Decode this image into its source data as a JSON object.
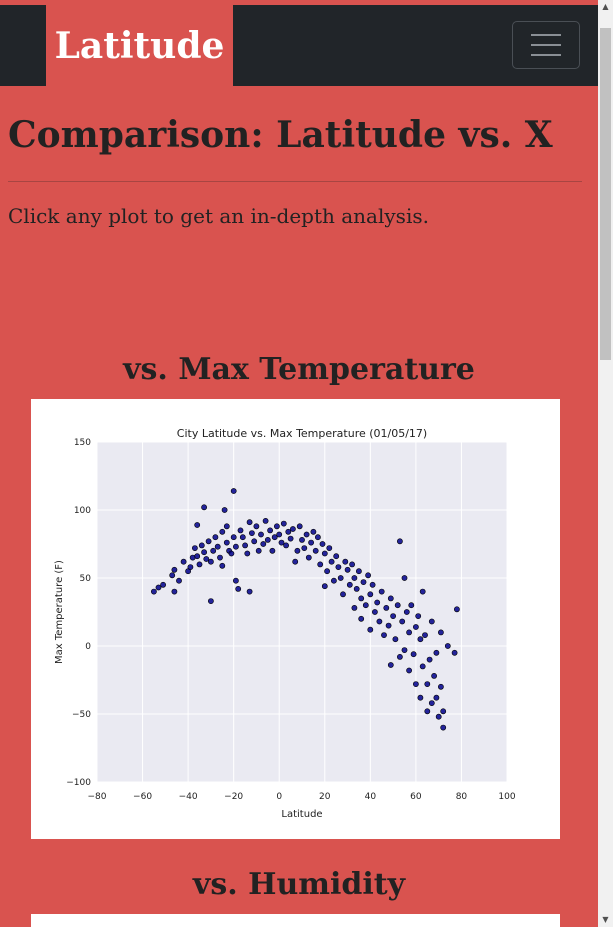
{
  "navbar": {
    "brand": "Latitude",
    "toggler_icon": "hamburger-icon"
  },
  "main": {
    "title": "Comparison: Latitude vs. X",
    "intro": "Click any plot to get an in-depth analysis."
  },
  "sections": [
    {
      "heading": "vs. Max Temperature"
    },
    {
      "heading": "vs. Humidity"
    }
  ],
  "colors": {
    "page_bg": "#d9534f",
    "navbar_bg": "#212529",
    "plot_bg": "#eaeaf2",
    "point_fill": "#00008b"
  },
  "chart_data": {
    "type": "scatter",
    "title": "City Latitude vs. Max Temperature (01/05/17)",
    "xlabel": "Latitude",
    "ylabel": "Max Temperature (F)",
    "xlim": [
      -80,
      100
    ],
    "ylim": [
      -100,
      150
    ],
    "xticks": [
      "−80",
      "−60",
      "−40",
      "−20",
      "0",
      "20",
      "40",
      "60",
      "80",
      "100"
    ],
    "yticks": [
      "150",
      "100",
      "50",
      "0",
      "−50",
      "−100"
    ],
    "grid": true,
    "series": [
      {
        "points": [
          [
            -55,
            40
          ],
          [
            -53,
            43
          ],
          [
            -51,
            45
          ],
          [
            -47,
            52
          ],
          [
            -46,
            56
          ],
          [
            -46,
            40
          ],
          [
            -44,
            48
          ],
          [
            -42,
            62
          ],
          [
            -40,
            55
          ],
          [
            -39,
            58
          ],
          [
            -38,
            65
          ],
          [
            -37,
            72
          ],
          [
            -36,
            89
          ],
          [
            -36,
            66
          ],
          [
            -35,
            60
          ],
          [
            -34,
            74
          ],
          [
            -33,
            102
          ],
          [
            -33,
            69
          ],
          [
            -32,
            64
          ],
          [
            -31,
            77
          ],
          [
            -30,
            33
          ],
          [
            -30,
            62
          ],
          [
            -29,
            70
          ],
          [
            -28,
            80
          ],
          [
            -27,
            73
          ],
          [
            -26,
            65
          ],
          [
            -25,
            84
          ],
          [
            -25,
            59
          ],
          [
            -24,
            100
          ],
          [
            -23,
            88
          ],
          [
            -23,
            76
          ],
          [
            -22,
            70
          ],
          [
            -21,
            68
          ],
          [
            -20,
            114
          ],
          [
            -20,
            80
          ],
          [
            -19,
            48
          ],
          [
            -19,
            73
          ],
          [
            -18,
            42
          ],
          [
            -17,
            85
          ],
          [
            -16,
            80
          ],
          [
            -15,
            74
          ],
          [
            -14,
            68
          ],
          [
            -13,
            91
          ],
          [
            -13,
            40
          ],
          [
            -12,
            83
          ],
          [
            -11,
            77
          ],
          [
            -10,
            88
          ],
          [
            -9,
            70
          ],
          [
            -8,
            82
          ],
          [
            -7,
            75
          ],
          [
            -6,
            92
          ],
          [
            -5,
            78
          ],
          [
            -4,
            85
          ],
          [
            -3,
            70
          ],
          [
            -2,
            80
          ],
          [
            -1,
            88
          ],
          [
            0,
            82
          ],
          [
            1,
            76
          ],
          [
            2,
            90
          ],
          [
            3,
            74
          ],
          [
            4,
            84
          ],
          [
            5,
            79
          ],
          [
            6,
            86
          ],
          [
            7,
            62
          ],
          [
            8,
            70
          ],
          [
            9,
            88
          ],
          [
            10,
            78
          ],
          [
            11,
            72
          ],
          [
            12,
            82
          ],
          [
            13,
            65
          ],
          [
            14,
            76
          ],
          [
            15,
            84
          ],
          [
            16,
            70
          ],
          [
            17,
            80
          ],
          [
            18,
            60
          ],
          [
            19,
            75
          ],
          [
            20,
            44
          ],
          [
            20,
            68
          ],
          [
            21,
            55
          ],
          [
            22,
            72
          ],
          [
            23,
            62
          ],
          [
            24,
            48
          ],
          [
            25,
            66
          ],
          [
            26,
            58
          ],
          [
            27,
            50
          ],
          [
            28,
            38
          ],
          [
            29,
            62
          ],
          [
            30,
            56
          ],
          [
            31,
            45
          ],
          [
            32,
            60
          ],
          [
            33,
            28
          ],
          [
            33,
            50
          ],
          [
            34,
            42
          ],
          [
            35,
            55
          ],
          [
            36,
            35
          ],
          [
            36,
            20
          ],
          [
            37,
            47
          ],
          [
            38,
            30
          ],
          [
            39,
            52
          ],
          [
            40,
            38
          ],
          [
            40,
            12
          ],
          [
            41,
            45
          ],
          [
            42,
            25
          ],
          [
            43,
            32
          ],
          [
            44,
            18
          ],
          [
            45,
            40
          ],
          [
            46,
            8
          ],
          [
            47,
            28
          ],
          [
            48,
            15
          ],
          [
            49,
            35
          ],
          [
            49,
            -14
          ],
          [
            50,
            22
          ],
          [
            51,
            5
          ],
          [
            52,
            30
          ],
          [
            53,
            -8
          ],
          [
            53,
            77
          ],
          [
            54,
            18
          ],
          [
            55,
            -3
          ],
          [
            55,
            50
          ],
          [
            56,
            25
          ],
          [
            57,
            10
          ],
          [
            57,
            -18
          ],
          [
            58,
            30
          ],
          [
            59,
            -6
          ],
          [
            60,
            14
          ],
          [
            60,
            -28
          ],
          [
            61,
            22
          ],
          [
            62,
            5
          ],
          [
            62,
            -38
          ],
          [
            63,
            -15
          ],
          [
            63,
            40
          ],
          [
            64,
            8
          ],
          [
            65,
            -28
          ],
          [
            65,
            -48
          ],
          [
            66,
            -10
          ],
          [
            67,
            18
          ],
          [
            67,
            -42
          ],
          [
            68,
            -22
          ],
          [
            69,
            -5
          ],
          [
            69,
            -38
          ],
          [
            70,
            -52
          ],
          [
            71,
            10
          ],
          [
            71,
            -30
          ],
          [
            72,
            -48
          ],
          [
            72,
            -60
          ],
          [
            74,
            0
          ],
          [
            77,
            -5
          ],
          [
            78,
            27
          ]
        ]
      }
    ]
  }
}
